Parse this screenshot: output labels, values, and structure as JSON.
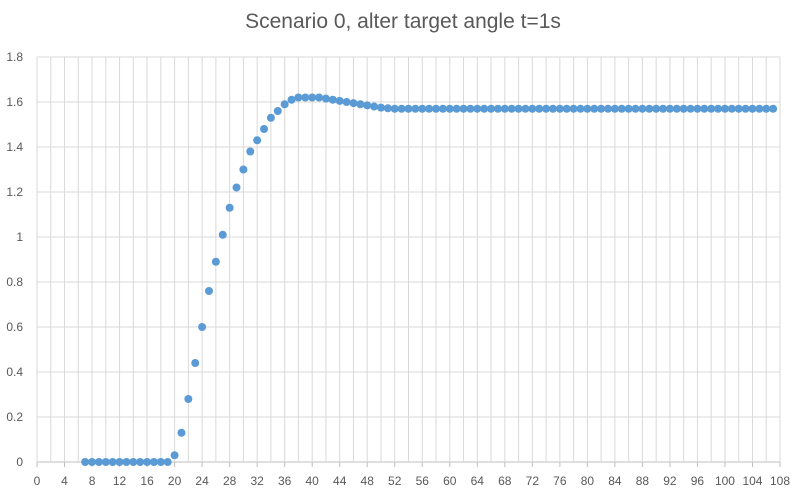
{
  "chart_data": {
    "type": "scatter",
    "title": "Scenario 0, alter target angle t=1s",
    "xlabel": "",
    "ylabel": "",
    "xlim": [
      0,
      108
    ],
    "ylim": [
      0,
      1.8
    ],
    "x_ticks": [
      "0",
      "4",
      "8",
      "12",
      "16",
      "20",
      "24",
      "28",
      "32",
      "36",
      "40",
      "44",
      "48",
      "52",
      "56",
      "60",
      "64",
      "68",
      "72",
      "76",
      "80",
      "84",
      "88",
      "92",
      "96",
      "100",
      "104",
      "108"
    ],
    "y_ticks": [
      "0",
      "0.2",
      "0.4",
      "0.6",
      "0.8",
      "1",
      "1.2",
      "1.4",
      "1.6",
      "1.8"
    ],
    "grid": true,
    "legend": "none",
    "marker_color": "#5B9BD5",
    "series": [
      {
        "x": [
          7,
          8,
          9,
          10,
          11,
          12,
          13,
          14,
          15,
          16,
          17,
          18,
          19,
          20,
          21,
          22,
          23,
          24,
          25,
          26,
          27,
          28,
          29,
          30,
          31,
          32,
          33,
          34,
          35,
          36,
          37,
          38,
          39,
          40,
          41,
          42,
          43,
          44,
          45,
          46,
          47,
          48,
          49,
          50,
          51,
          52,
          53,
          54,
          55,
          56,
          57,
          58,
          59,
          60,
          61,
          62,
          63,
          64,
          65,
          66,
          67,
          68,
          69,
          70,
          71,
          72,
          73,
          74,
          75,
          76,
          77,
          78,
          79,
          80,
          81,
          82,
          83,
          84,
          85,
          86,
          87,
          88,
          89,
          90,
          91,
          92,
          93,
          94,
          95,
          96,
          97,
          98,
          99,
          100,
          101,
          102,
          103,
          104,
          105,
          106,
          107
        ],
        "y": [
          0,
          0,
          0,
          0,
          0,
          0,
          0,
          0,
          0,
          0,
          0,
          0,
          0,
          0.03,
          0.13,
          0.28,
          0.44,
          0.6,
          0.76,
          0.89,
          1.01,
          1.13,
          1.22,
          1.3,
          1.38,
          1.43,
          1.48,
          1.53,
          1.56,
          1.59,
          1.61,
          1.62,
          1.62,
          1.62,
          1.62,
          1.615,
          1.61,
          1.605,
          1.6,
          1.595,
          1.59,
          1.585,
          1.58,
          1.575,
          1.572,
          1.57,
          1.57,
          1.57,
          1.57,
          1.57,
          1.57,
          1.57,
          1.57,
          1.57,
          1.57,
          1.57,
          1.57,
          1.57,
          1.57,
          1.57,
          1.57,
          1.57,
          1.57,
          1.57,
          1.57,
          1.57,
          1.57,
          1.57,
          1.57,
          1.57,
          1.57,
          1.57,
          1.57,
          1.57,
          1.57,
          1.57,
          1.57,
          1.57,
          1.57,
          1.57,
          1.57,
          1.57,
          1.57,
          1.57,
          1.57,
          1.57,
          1.57,
          1.57,
          1.57,
          1.57,
          1.57,
          1.57,
          1.57,
          1.57,
          1.57,
          1.57,
          1.57,
          1.57,
          1.57,
          1.57,
          1.57
        ]
      }
    ]
  }
}
